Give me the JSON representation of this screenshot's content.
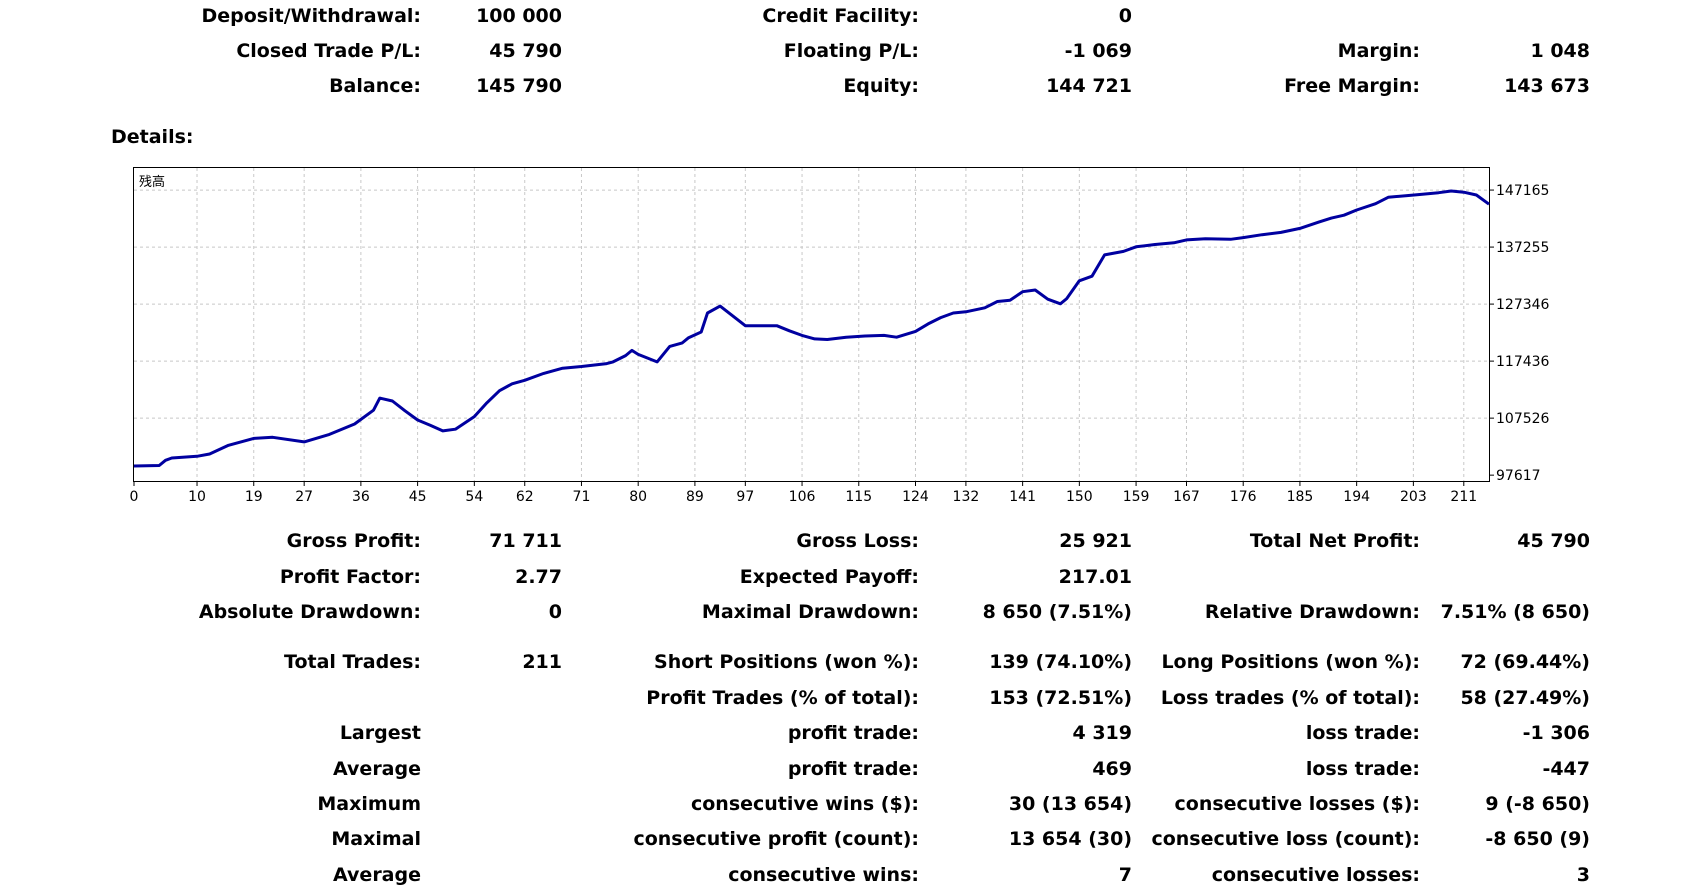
{
  "summary": {
    "rows": [
      [
        {
          "label": "Deposit/Withdrawal:",
          "value": "100 000"
        },
        {
          "label": "Credit Facility:",
          "value": "0"
        },
        {
          "label": "",
          "value": ""
        }
      ],
      [
        {
          "label": "Closed Trade P/L:",
          "value": "45 790"
        },
        {
          "label": "Floating P/L:",
          "value": "-1 069"
        },
        {
          "label": "Margin:",
          "value": "1 048"
        }
      ],
      [
        {
          "label": "Balance:",
          "value": "145 790"
        },
        {
          "label": "Equity:",
          "value": "144 721"
        },
        {
          "label": "Free Margin:",
          "value": "143 673"
        }
      ]
    ]
  },
  "details_label": "Details:",
  "chart_data": {
    "type": "line",
    "corner_label": "残高",
    "xlim": [
      0,
      215
    ],
    "ylim": [
      96600,
      151000
    ],
    "x_ticks": [
      "0",
      "10",
      "19",
      "27",
      "36",
      "45",
      "54",
      "62",
      "71",
      "80",
      "89",
      "97",
      "106",
      "115",
      "124",
      "132",
      "141",
      "150",
      "159",
      "167",
      "176",
      "185",
      "194",
      "203",
      "211"
    ],
    "y_ticks": [
      {
        "value": 97617,
        "label": "97617"
      },
      {
        "value": 107526,
        "label": "107526"
      },
      {
        "value": 117436,
        "label": "117436"
      },
      {
        "value": 127346,
        "label": "127346"
      },
      {
        "value": 137255,
        "label": "137255"
      },
      {
        "value": 147165,
        "label": "147165"
      }
    ],
    "grid": true,
    "color": "#0000a0",
    "series": [
      {
        "x": [
          0,
          4,
          5,
          6,
          10,
          12,
          15,
          19,
          22,
          27,
          31,
          35,
          38,
          39,
          41,
          43,
          45,
          47,
          49,
          51,
          54,
          56,
          58,
          60,
          62,
          65,
          68,
          71,
          75,
          76,
          78,
          79,
          80,
          83,
          85,
          87,
          88,
          90,
          91,
          93,
          97,
          102,
          104,
          106,
          108,
          110,
          113,
          116,
          119,
          121,
          124,
          126,
          128,
          130,
          132,
          135,
          137,
          139,
          141,
          143,
          145,
          147,
          148,
          150,
          152,
          154,
          157,
          159,
          162,
          165,
          167,
          170,
          174,
          176,
          179,
          182,
          185,
          188,
          190,
          192,
          194,
          197,
          199,
          202,
          204,
          207,
          209,
          211,
          213,
          215
        ],
        "y": [
          99200,
          99300,
          100200,
          100600,
          100900,
          101300,
          102800,
          104000,
          104200,
          103400,
          104700,
          106500,
          108900,
          111000,
          110500,
          108800,
          107200,
          106300,
          105300,
          105600,
          107800,
          110200,
          112300,
          113500,
          114100,
          115300,
          116200,
          116500,
          117000,
          117300,
          118400,
          119300,
          118600,
          117300,
          120000,
          120600,
          121500,
          122500,
          125800,
          127000,
          123600,
          123600,
          122700,
          121900,
          121300,
          121200,
          121600,
          121800,
          121900,
          121600,
          122600,
          123900,
          125000,
          125800,
          126000,
          126700,
          127800,
          128000,
          129500,
          129800,
          128200,
          127400,
          128300,
          131400,
          132200,
          135900,
          136500,
          137300,
          137700,
          138000,
          138500,
          138700,
          138600,
          138900,
          139400,
          139800,
          140500,
          141600,
          142300,
          142800,
          143700,
          144800,
          145900,
          146200,
          146400,
          146700,
          147000,
          146800,
          146300,
          144700
        ]
      }
    ]
  },
  "stats": {
    "rows": [
      [
        {
          "label": "Gross Profit:",
          "value": "71 711"
        },
        {
          "label": "Gross Loss:",
          "value": "25 921"
        },
        {
          "label": "Total Net Profit:",
          "value": "45 790"
        }
      ],
      [
        {
          "label": "Profit Factor:",
          "value": "2.77"
        },
        {
          "label": "Expected Payoff:",
          "value": "217.01"
        },
        {
          "label": "",
          "value": ""
        }
      ],
      [
        {
          "label": "Absolute Drawdown:",
          "value": "0"
        },
        {
          "label": "Maximal Drawdown:",
          "value": "8 650 (7.51%)"
        },
        {
          "label": "Relative Drawdown:",
          "value": "7.51% (8 650)"
        }
      ],
      [
        {
          "label": "Total Trades:",
          "value": "211"
        },
        {
          "label": "Short Positions (won %):",
          "value": "139 (74.10%)"
        },
        {
          "label": "Long Positions (won %):",
          "value": "72 (69.44%)"
        }
      ],
      [
        {
          "label": "",
          "value": ""
        },
        {
          "label": "Profit Trades (% of total):",
          "value": "153 (72.51%)"
        },
        {
          "label": "Loss trades (% of total):",
          "value": "58 (27.49%)"
        }
      ],
      [
        {
          "label": "Largest",
          "value": ""
        },
        {
          "label": "profit trade:",
          "value": "4 319"
        },
        {
          "label": "loss trade:",
          "value": "-1 306"
        }
      ],
      [
        {
          "label": "Average",
          "value": ""
        },
        {
          "label": "profit trade:",
          "value": "469"
        },
        {
          "label": "loss trade:",
          "value": "-447"
        }
      ],
      [
        {
          "label": "Maximum",
          "value": ""
        },
        {
          "label": "consecutive wins ($):",
          "value": "30 (13 654)"
        },
        {
          "label": "consecutive losses ($):",
          "value": "9 (-8 650)"
        }
      ],
      [
        {
          "label": "Maximal",
          "value": ""
        },
        {
          "label": "consecutive profit (count):",
          "value": "13 654 (30)"
        },
        {
          "label": "consecutive loss (count):",
          "value": "-8 650 (9)"
        }
      ],
      [
        {
          "label": "Average",
          "value": ""
        },
        {
          "label": "consecutive wins:",
          "value": "7"
        },
        {
          "label": "consecutive losses:",
          "value": "3"
        }
      ]
    ]
  }
}
